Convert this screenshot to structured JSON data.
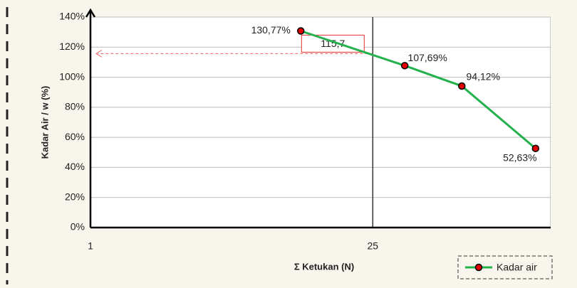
{
  "chart_data": {
    "type": "line",
    "x_label": "Σ Ketukan (N)",
    "y_label": "Kadar Air / w (%)",
    "x": [
      11,
      36,
      69,
      160
    ],
    "series": [
      {
        "name": "Kadar air",
        "color": "#22b14c",
        "marker_color": "#e00000",
        "values": [
          130.77,
          107.69,
          94.12,
          52.63
        ],
        "value_labels": [
          "130,77%",
          "107,69%",
          "94,12%",
          "52,63%"
        ]
      }
    ],
    "xlim": [
      1,
      190
    ],
    "xscale": "log",
    "xticks": [
      1,
      25
    ],
    "ylim": [
      0,
      140
    ],
    "yticks": [
      {
        "value": 0,
        "label": "0%"
      },
      {
        "value": 20,
        "label": "20%"
      },
      {
        "value": 40,
        "label": "40%"
      },
      {
        "value": 60,
        "label": "60%"
      },
      {
        "value": 80,
        "label": "80%"
      },
      {
        "value": 100,
        "label": "100%"
      },
      {
        "value": 120,
        "label": "120%"
      },
      {
        "value": 140,
        "label": "140%"
      }
    ],
    "grid": true,
    "reference": {
      "x": 25,
      "y": 115.7,
      "label": "115,7"
    },
    "legend": "bottom-right"
  }
}
